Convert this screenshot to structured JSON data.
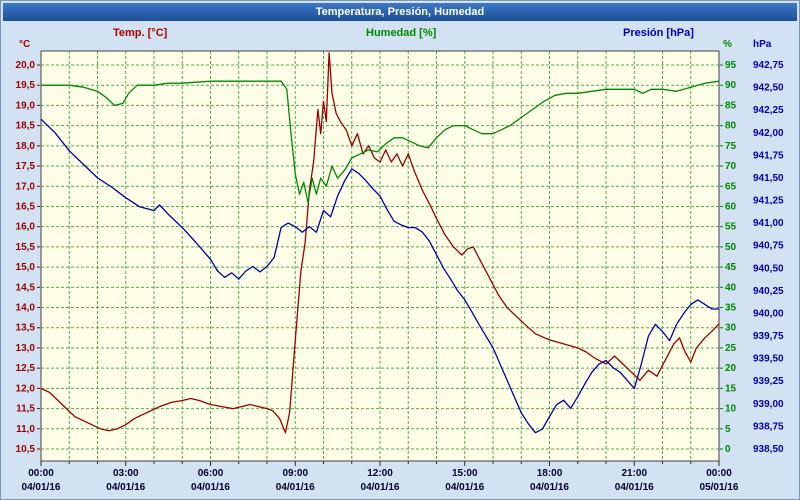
{
  "window": {
    "title": "Temperatura, Presión, Humedad"
  },
  "colors": {
    "temp": "#990000",
    "humidity": "#008800",
    "pressure": "#0000aa",
    "grid": "#55aa55",
    "plot_bg": "#ffffe8",
    "window_bg": "#d2e2f2",
    "titlebar_top": "#3c78c8",
    "titlebar_bottom": "#1c4f96",
    "x_label": "#000028"
  },
  "chart_data": {
    "type": "line",
    "title": "Temperatura, Presión, Humedad",
    "header_labels": {
      "temp": "Temp. [°C]",
      "humidity": "Humedad [%]",
      "pressure": "Presión [hPa]"
    },
    "unit_labels": {
      "temp": "°C",
      "humidity": "%",
      "pressure": "hPa"
    },
    "axes": {
      "temp": {
        "min": 10.5,
        "max": 20.0,
        "step": 0.5,
        "tick_labels": [
          "20,0",
          "19,5",
          "19,0",
          "18,5",
          "18,0",
          "17,5",
          "17,0",
          "16,5",
          "16,0",
          "15,5",
          "15,0",
          "14,5",
          "14,0",
          "13,5",
          "13,0",
          "12,5",
          "12,0",
          "11,5",
          "11,0",
          "10,5"
        ]
      },
      "humidity": {
        "min": 0,
        "max": 95,
        "step": 5,
        "tick_labels": [
          "95",
          "90",
          "85",
          "80",
          "75",
          "70",
          "65",
          "60",
          "55",
          "50",
          "45",
          "40",
          "35",
          "30",
          "25",
          "20",
          "15",
          "10",
          "5",
          "0"
        ]
      },
      "pressure": {
        "min": 938.5,
        "max": 942.75,
        "step": 0.25,
        "tick_labels": [
          "942,75",
          "942,50",
          "942,25",
          "942,00",
          "941,75",
          "941,50",
          "941,25",
          "941,00",
          "940,75",
          "940,50",
          "940,25",
          "940,00",
          "939,75",
          "939,50",
          "939,25",
          "939,00",
          "938,75",
          "938,50"
        ]
      }
    },
    "x_axis": {
      "min_hours": 0,
      "max_hours": 24,
      "tick_hours": [
        0,
        3,
        6,
        9,
        12,
        15,
        18,
        21,
        24
      ],
      "time_labels": [
        "00:00",
        "03:00",
        "06:00",
        "09:00",
        "12:00",
        "15:00",
        "18:00",
        "21:00",
        "00:00"
      ],
      "date_labels": [
        "04/01/16",
        "04/01/16",
        "04/01/16",
        "04/01/16",
        "04/01/16",
        "04/01/16",
        "04/01/16",
        "04/01/16",
        "05/01/16"
      ]
    },
    "series": [
      {
        "id": "temp",
        "name": "Temp. [°C]",
        "axis": "temp",
        "color": "#990000",
        "points": [
          [
            0,
            12.0
          ],
          [
            0.3,
            11.9
          ],
          [
            0.6,
            11.7
          ],
          [
            0.9,
            11.5
          ],
          [
            1.2,
            11.3
          ],
          [
            1.5,
            11.2
          ],
          [
            1.8,
            11.1
          ],
          [
            2.1,
            11.0
          ],
          [
            2.4,
            10.95
          ],
          [
            2.7,
            11.0
          ],
          [
            3.0,
            11.1
          ],
          [
            3.3,
            11.25
          ],
          [
            3.6,
            11.35
          ],
          [
            3.9,
            11.45
          ],
          [
            4.2,
            11.55
          ],
          [
            4.6,
            11.65
          ],
          [
            5.0,
            11.7
          ],
          [
            5.3,
            11.75
          ],
          [
            5.6,
            11.7
          ],
          [
            6.0,
            11.6
          ],
          [
            6.4,
            11.55
          ],
          [
            6.8,
            11.5
          ],
          [
            7.1,
            11.55
          ],
          [
            7.4,
            11.6
          ],
          [
            7.7,
            11.55
          ],
          [
            8.0,
            11.5
          ],
          [
            8.2,
            11.45
          ],
          [
            8.45,
            11.25
          ],
          [
            8.65,
            10.9
          ],
          [
            8.8,
            11.4
          ],
          [
            9.0,
            13.2
          ],
          [
            9.2,
            14.9
          ],
          [
            9.35,
            15.6
          ],
          [
            9.5,
            16.9
          ],
          [
            9.65,
            17.6
          ],
          [
            9.8,
            18.9
          ],
          [
            9.9,
            18.3
          ],
          [
            10.0,
            19.1
          ],
          [
            10.1,
            18.6
          ],
          [
            10.2,
            20.3
          ],
          [
            10.3,
            19.3
          ],
          [
            10.45,
            18.8
          ],
          [
            10.6,
            18.6
          ],
          [
            10.8,
            18.4
          ],
          [
            11.0,
            18.0
          ],
          [
            11.2,
            18.3
          ],
          [
            11.4,
            17.8
          ],
          [
            11.6,
            18.0
          ],
          [
            11.8,
            17.7
          ],
          [
            12.0,
            17.6
          ],
          [
            12.2,
            17.9
          ],
          [
            12.4,
            17.6
          ],
          [
            12.6,
            17.8
          ],
          [
            12.8,
            17.5
          ],
          [
            13.0,
            17.8
          ],
          [
            13.2,
            17.4
          ],
          [
            13.5,
            16.9
          ],
          [
            13.8,
            16.5
          ],
          [
            14.0,
            16.2
          ],
          [
            14.3,
            15.8
          ],
          [
            14.6,
            15.5
          ],
          [
            14.9,
            15.3
          ],
          [
            15.1,
            15.45
          ],
          [
            15.3,
            15.5
          ],
          [
            15.6,
            15.1
          ],
          [
            15.9,
            14.7
          ],
          [
            16.2,
            14.3
          ],
          [
            16.5,
            14.0
          ],
          [
            16.8,
            13.8
          ],
          [
            17.1,
            13.6
          ],
          [
            17.5,
            13.35
          ],
          [
            18.0,
            13.2
          ],
          [
            18.5,
            13.1
          ],
          [
            19.0,
            13.0
          ],
          [
            19.3,
            12.9
          ],
          [
            19.6,
            12.75
          ],
          [
            20.0,
            12.6
          ],
          [
            20.3,
            12.8
          ],
          [
            20.6,
            12.6
          ],
          [
            20.9,
            12.4
          ],
          [
            21.2,
            12.2
          ],
          [
            21.5,
            12.45
          ],
          [
            21.8,
            12.3
          ],
          [
            22.1,
            12.7
          ],
          [
            22.4,
            13.1
          ],
          [
            22.6,
            13.25
          ],
          [
            22.8,
            12.9
          ],
          [
            23.0,
            12.65
          ],
          [
            23.2,
            13.0
          ],
          [
            23.5,
            13.25
          ],
          [
            23.8,
            13.45
          ],
          [
            24.0,
            13.6
          ]
        ]
      },
      {
        "id": "humidity",
        "name": "Humedad [%]",
        "axis": "humidity",
        "color": "#008800",
        "points": [
          [
            0,
            90
          ],
          [
            0.5,
            90
          ],
          [
            1.0,
            90
          ],
          [
            1.5,
            89.5
          ],
          [
            2.0,
            88.5
          ],
          [
            2.3,
            87
          ],
          [
            2.6,
            85
          ],
          [
            2.9,
            85.5
          ],
          [
            3.1,
            88
          ],
          [
            3.4,
            90
          ],
          [
            4.0,
            90
          ],
          [
            4.5,
            90.5
          ],
          [
            5.0,
            90.5
          ],
          [
            6.0,
            91
          ],
          [
            7.0,
            91
          ],
          [
            8.0,
            91
          ],
          [
            8.5,
            91
          ],
          [
            8.7,
            89
          ],
          [
            8.85,
            78
          ],
          [
            9.0,
            68
          ],
          [
            9.15,
            63
          ],
          [
            9.3,
            66
          ],
          [
            9.45,
            61
          ],
          [
            9.6,
            67
          ],
          [
            9.75,
            63
          ],
          [
            9.9,
            67
          ],
          [
            10.1,
            65
          ],
          [
            10.3,
            70
          ],
          [
            10.5,
            67
          ],
          [
            10.75,
            69
          ],
          [
            11.0,
            72
          ],
          [
            11.3,
            73
          ],
          [
            11.6,
            74
          ],
          [
            11.9,
            73.5
          ],
          [
            12.2,
            75.5
          ],
          [
            12.5,
            77
          ],
          [
            12.8,
            77
          ],
          [
            13.1,
            76
          ],
          [
            13.4,
            75
          ],
          [
            13.7,
            74.5
          ],
          [
            14.0,
            77
          ],
          [
            14.3,
            79
          ],
          [
            14.6,
            80
          ],
          [
            15.0,
            80
          ],
          [
            15.3,
            79
          ],
          [
            15.6,
            78
          ],
          [
            16.0,
            78
          ],
          [
            16.3,
            79
          ],
          [
            16.6,
            80
          ],
          [
            17.0,
            82
          ],
          [
            17.4,
            84
          ],
          [
            17.8,
            86
          ],
          [
            18.2,
            87.5
          ],
          [
            18.6,
            88
          ],
          [
            19.0,
            88
          ],
          [
            19.5,
            88.5
          ],
          [
            20.0,
            89
          ],
          [
            20.5,
            89
          ],
          [
            21.0,
            89
          ],
          [
            21.3,
            88
          ],
          [
            21.6,
            89
          ],
          [
            22.0,
            89
          ],
          [
            22.5,
            88.5
          ],
          [
            23.0,
            89.5
          ],
          [
            23.5,
            90.5
          ],
          [
            24.0,
            91
          ]
        ]
      },
      {
        "id": "pressure",
        "name": "Presión [hPa]",
        "axis": "pressure",
        "color": "#0000aa",
        "points": [
          [
            0,
            942.15
          ],
          [
            0.5,
            942.0
          ],
          [
            1.0,
            941.8
          ],
          [
            1.5,
            941.65
          ],
          [
            2.0,
            941.5
          ],
          [
            2.5,
            941.4
          ],
          [
            3.0,
            941.28
          ],
          [
            3.5,
            941.18
          ],
          [
            4.0,
            941.14
          ],
          [
            4.2,
            941.2
          ],
          [
            4.5,
            941.1
          ],
          [
            5.0,
            940.95
          ],
          [
            5.5,
            940.78
          ],
          [
            6.0,
            940.6
          ],
          [
            6.25,
            940.47
          ],
          [
            6.5,
            940.4
          ],
          [
            6.75,
            940.45
          ],
          [
            7.0,
            940.38
          ],
          [
            7.25,
            940.47
          ],
          [
            7.5,
            940.52
          ],
          [
            7.75,
            940.46
          ],
          [
            8.0,
            940.52
          ],
          [
            8.25,
            940.62
          ],
          [
            8.5,
            940.95
          ],
          [
            8.75,
            941.0
          ],
          [
            9.0,
            940.96
          ],
          [
            9.25,
            940.9
          ],
          [
            9.5,
            940.96
          ],
          [
            9.75,
            940.9
          ],
          [
            10.0,
            941.14
          ],
          [
            10.25,
            941.07
          ],
          [
            10.5,
            941.3
          ],
          [
            10.75,
            941.47
          ],
          [
            11.0,
            941.6
          ],
          [
            11.25,
            941.55
          ],
          [
            11.5,
            941.47
          ],
          [
            11.75,
            941.38
          ],
          [
            12.0,
            941.3
          ],
          [
            12.25,
            941.15
          ],
          [
            12.5,
            941.02
          ],
          [
            12.75,
            940.98
          ],
          [
            13.0,
            940.95
          ],
          [
            13.25,
            940.95
          ],
          [
            13.5,
            940.9
          ],
          [
            13.75,
            940.8
          ],
          [
            14.0,
            940.65
          ],
          [
            14.25,
            940.5
          ],
          [
            14.5,
            940.38
          ],
          [
            14.75,
            940.25
          ],
          [
            15.0,
            940.15
          ],
          [
            15.25,
            940.02
          ],
          [
            15.5,
            939.88
          ],
          [
            15.75,
            939.75
          ],
          [
            16.0,
            939.62
          ],
          [
            16.25,
            939.44
          ],
          [
            16.5,
            939.26
          ],
          [
            16.75,
            939.08
          ],
          [
            17.0,
            938.9
          ],
          [
            17.25,
            938.78
          ],
          [
            17.5,
            938.68
          ],
          [
            17.75,
            938.72
          ],
          [
            18.0,
            938.86
          ],
          [
            18.25,
            938.99
          ],
          [
            18.5,
            939.04
          ],
          [
            18.75,
            938.95
          ],
          [
            19.0,
            939.08
          ],
          [
            19.25,
            939.22
          ],
          [
            19.5,
            939.35
          ],
          [
            19.75,
            939.44
          ],
          [
            20.0,
            939.48
          ],
          [
            20.25,
            939.4
          ],
          [
            20.5,
            939.35
          ],
          [
            20.75,
            939.26
          ],
          [
            21.0,
            939.17
          ],
          [
            21.25,
            939.44
          ],
          [
            21.5,
            939.75
          ],
          [
            21.75,
            939.88
          ],
          [
            22.0,
            939.8
          ],
          [
            22.25,
            939.7
          ],
          [
            22.5,
            939.88
          ],
          [
            22.75,
            940.0
          ],
          [
            23.0,
            940.1
          ],
          [
            23.25,
            940.15
          ],
          [
            23.5,
            940.1
          ],
          [
            23.75,
            940.05
          ],
          [
            24.0,
            940.05
          ]
        ]
      }
    ]
  }
}
